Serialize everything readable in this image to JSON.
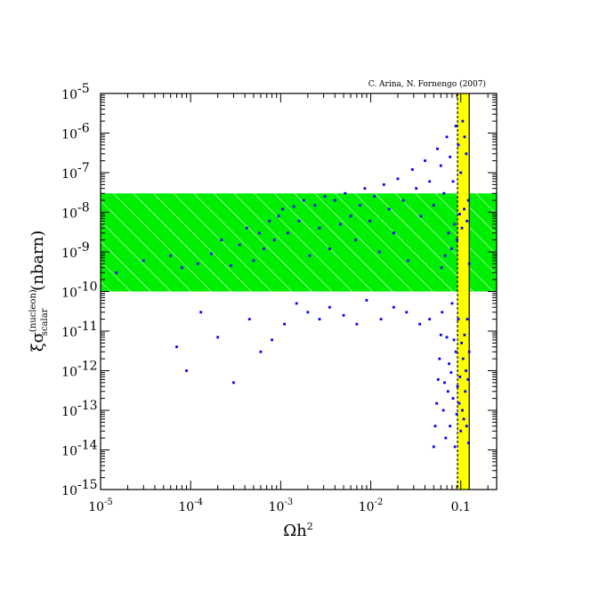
{
  "chart_data": {
    "type": "scatter",
    "credit": "C. Arina, N. Fornengo (2007)",
    "xlabel": {
      "main": "Ωh",
      "sup": "2"
    },
    "ylabel": {
      "xi": "ξ",
      "sigma": "σ",
      "sup": "(nucleon)",
      "sub": "scalar",
      "unit": "(nbarn)"
    },
    "x_log": true,
    "y_log": true,
    "xlim": [
      1e-05,
      0.25
    ],
    "ylim": [
      1e-15,
      1e-05
    ],
    "x_ticks": [
      {
        "value": 1e-05,
        "base": "10",
        "exp": "-5"
      },
      {
        "value": 0.0001,
        "base": "10",
        "exp": "-4"
      },
      {
        "value": 0.001,
        "base": "10",
        "exp": "-3"
      },
      {
        "value": 0.01,
        "base": "10",
        "exp": "-2"
      },
      {
        "value": 0.1,
        "base": "0.1",
        "exp": ""
      }
    ],
    "y_ticks": [
      {
        "value": 1e-15,
        "exp": "-15"
      },
      {
        "value": 1e-14,
        "exp": "-14"
      },
      {
        "value": 1e-13,
        "exp": "-13"
      },
      {
        "value": 1e-12,
        "exp": "-12"
      },
      {
        "value": 1e-11,
        "exp": "-11"
      },
      {
        "value": 1e-10,
        "exp": "-10"
      },
      {
        "value": 1e-09,
        "exp": "-9"
      },
      {
        "value": 1e-08,
        "exp": "-8"
      },
      {
        "value": 1e-07,
        "exp": "-7"
      },
      {
        "value": 1e-06,
        "exp": "-6"
      },
      {
        "value": 1e-05,
        "exp": "-5"
      }
    ],
    "excluded_band": {
      "y_range": [
        1e-10,
        3e-08
      ],
      "color": "#00ee00",
      "hatch_color": "#ffffff"
    },
    "relic_band": {
      "x_range": [
        0.092,
        0.124
      ],
      "color": "#ffff00"
    },
    "series": [
      {
        "color": "#0000ff",
        "points": [
          [
            1.5e-05,
            3e-10
          ],
          [
            3e-05,
            6e-10
          ],
          [
            6e-05,
            8e-10
          ],
          [
            8e-05,
            4e-10
          ],
          [
            0.00012,
            5e-10
          ],
          [
            0.00017,
            9e-10
          ],
          [
            0.00022,
            2e-09
          ],
          [
            0.00028,
            4.5e-10
          ],
          [
            0.00035,
            1.5e-09
          ],
          [
            0.00042,
            4e-09
          ],
          [
            0.0005,
            6e-10
          ],
          [
            0.00058,
            3e-09
          ],
          [
            0.00065,
            1.2e-09
          ],
          [
            0.00075,
            6e-09
          ],
          [
            0.00085,
            2e-09
          ],
          [
            0.00095,
            8e-09
          ],
          [
            0.00105,
            1.2e-08
          ],
          [
            0.0012,
            3e-09
          ],
          [
            0.0014,
            1.4e-08
          ],
          [
            0.0016,
            6e-09
          ],
          [
            0.0018,
            2e-08
          ],
          [
            0.0021,
            8e-10
          ],
          [
            0.0024,
            1.5e-08
          ],
          [
            0.0027,
            4e-09
          ],
          [
            0.0031,
            2.5e-08
          ],
          [
            0.0035,
            1.2e-09
          ],
          [
            0.004,
            2e-08
          ],
          [
            0.0046,
            5e-09
          ],
          [
            0.0052,
            3e-08
          ],
          [
            0.006,
            8e-09
          ],
          [
            0.0068,
            2e-09
          ],
          [
            0.0076,
            1.5e-08
          ],
          [
            0.0086,
            4e-08
          ],
          [
            0.0098,
            6e-09
          ],
          [
            0.011,
            2.5e-08
          ],
          [
            0.0125,
            1e-09
          ],
          [
            0.014,
            5e-08
          ],
          [
            0.016,
            1.2e-08
          ],
          [
            0.018,
            3e-09
          ],
          [
            0.02,
            7e-08
          ],
          [
            0.023,
            2e-08
          ],
          [
            0.026,
            6e-10
          ],
          [
            0.029,
            1.2e-07
          ],
          [
            0.032,
            4e-08
          ],
          [
            0.036,
            8e-09
          ],
          [
            0.04,
            2e-07
          ],
          [
            0.045,
            6e-08
          ],
          [
            0.05,
            1.5e-08
          ],
          [
            0.055,
            4e-07
          ],
          [
            0.06,
            1.5e-07
          ],
          [
            0.065,
            3e-08
          ],
          [
            0.07,
            8e-07
          ],
          [
            0.076,
            2.5e-07
          ],
          [
            0.082,
            6e-08
          ],
          [
            0.088,
            1.5e-06
          ],
          [
            0.094,
            5e-07
          ],
          [
            0.1,
            1e-07
          ],
          [
            0.105,
            2e-06
          ],
          [
            0.11,
            8e-07
          ],
          [
            0.115,
            3e-07
          ],
          [
            7e-05,
            4e-12
          ],
          [
            9e-05,
            1e-12
          ],
          [
            0.00013,
            3e-11
          ],
          [
            0.0002,
            7e-12
          ],
          [
            0.0003,
            5e-13
          ],
          [
            0.00045,
            2e-11
          ],
          [
            0.0006,
            3e-12
          ],
          [
            0.0008,
            6e-12
          ],
          [
            0.0011,
            1.5e-11
          ],
          [
            0.0015,
            5e-11
          ],
          [
            0.002,
            3e-11
          ],
          [
            0.0027,
            2e-11
          ],
          [
            0.0035,
            4e-11
          ],
          [
            0.005,
            2.5e-11
          ],
          [
            0.007,
            1.5e-11
          ],
          [
            0.009,
            6e-11
          ],
          [
            0.013,
            2e-11
          ],
          [
            0.018,
            4e-11
          ],
          [
            0.025,
            3e-11
          ],
          [
            0.035,
            1.5e-11
          ],
          [
            0.045,
            2e-11
          ],
          [
            0.05,
            1.2e-14
          ],
          [
            0.052,
            4e-14
          ],
          [
            0.054,
            1.5e-13
          ],
          [
            0.056,
            6e-13
          ],
          [
            0.058,
            2e-12
          ],
          [
            0.06,
            8e-12
          ],
          [
            0.062,
            3e-11
          ],
          [
            0.064,
            1e-13
          ],
          [
            0.066,
            5e-13
          ],
          [
            0.068,
            2e-14
          ],
          [
            0.07,
            7e-12
          ],
          [
            0.072,
            3e-13
          ],
          [
            0.074,
            1.5e-12
          ],
          [
            0.076,
            4e-14
          ],
          [
            0.078,
            9e-13
          ],
          [
            0.08,
            5e-11
          ],
          [
            0.082,
            2e-13
          ],
          [
            0.084,
            6e-12
          ],
          [
            0.086,
            1.2e-14
          ],
          [
            0.088,
            3e-12
          ],
          [
            0.09,
            8e-14
          ],
          [
            0.092,
            4e-13
          ],
          [
            0.094,
            2e-11
          ],
          [
            0.096,
            1.5e-13
          ],
          [
            0.098,
            7e-13
          ],
          [
            0.1,
            3e-14
          ],
          [
            0.102,
            5e-12
          ],
          [
            0.104,
            1e-13
          ],
          [
            0.106,
            2e-12
          ],
          [
            0.108,
            6e-14
          ],
          [
            0.11,
            8e-12
          ],
          [
            0.112,
            3e-13
          ],
          [
            0.114,
            1e-12
          ],
          [
            0.116,
            4e-14
          ],
          [
            0.118,
            2e-11
          ],
          [
            0.12,
            6e-13
          ],
          [
            0.122,
            1.5e-14
          ],
          [
            0.124,
            3e-12
          ],
          [
            0.061,
            4e-10
          ],
          [
            0.067,
            8e-10
          ],
          [
            0.073,
            3e-09
          ],
          [
            0.079,
            1.2e-09
          ],
          [
            0.085,
            5e-09
          ],
          [
            0.091,
            2e-09
          ],
          [
            0.097,
            9e-09
          ],
          [
            0.103,
            4e-09
          ],
          [
            0.109,
            1.2e-08
          ],
          [
            0.117,
            6e-09
          ],
          [
            0.121,
            2e-08
          ],
          [
            0.124,
            5e-10
          ]
        ]
      }
    ]
  }
}
